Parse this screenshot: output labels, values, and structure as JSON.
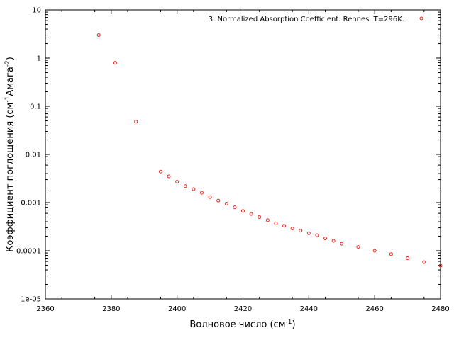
{
  "chart_data": {
    "type": "scatter",
    "xlabel": {
      "main": "Волновое число (см",
      "sup": "-1",
      "tail": ")"
    },
    "ylabel": {
      "main": "Коэффициент поглощения (см",
      "sup1": "-1",
      "mid": "Амага",
      "sup2": "-2",
      "tail": ")"
    },
    "xlim": [
      2360,
      2480
    ],
    "ylim": [
      1e-05,
      10
    ],
    "yscale": "log",
    "grid": false,
    "legend": "top-right",
    "x_ticks": [
      "2360",
      "2380",
      "2400",
      "2420",
      "2440",
      "2460",
      "2480"
    ],
    "y_ticks": [
      "1e-05",
      "0.0001",
      "0.001",
      "0.01",
      "0.1",
      "1",
      "10"
    ],
    "series": [
      {
        "name": "3. Normalized Absorption Coefficient. Rennes. T=296K.",
        "color": "#e8291c",
        "points": [
          [
            2376.2,
            3.0
          ],
          [
            2381.2,
            0.8
          ],
          [
            2387.5,
            0.048
          ],
          [
            2395.0,
            0.0044
          ],
          [
            2397.5,
            0.0035
          ],
          [
            2400.0,
            0.0027
          ],
          [
            2402.5,
            0.0022
          ],
          [
            2405.0,
            0.0019
          ],
          [
            2407.5,
            0.0016
          ],
          [
            2410.0,
            0.0013
          ],
          [
            2412.5,
            0.0011
          ],
          [
            2415.0,
            0.00095
          ],
          [
            2417.5,
            0.0008
          ],
          [
            2420.0,
            0.00067
          ],
          [
            2422.5,
            0.00058
          ],
          [
            2425.0,
            0.0005
          ],
          [
            2427.5,
            0.00043
          ],
          [
            2430.0,
            0.00037
          ],
          [
            2432.5,
            0.00033
          ],
          [
            2435.0,
            0.00029
          ],
          [
            2437.5,
            0.00026
          ],
          [
            2440.0,
            0.00023
          ],
          [
            2442.5,
            0.00021
          ],
          [
            2445.0,
            0.00018
          ],
          [
            2447.5,
            0.00016
          ],
          [
            2450.0,
            0.00014
          ],
          [
            2455.0,
            0.00012
          ],
          [
            2460.0,
            0.0001
          ],
          [
            2465.0,
            8.5e-05
          ],
          [
            2470.0,
            7e-05
          ],
          [
            2475.0,
            5.8e-05
          ],
          [
            2480.0,
            4.9e-05
          ]
        ]
      }
    ]
  }
}
